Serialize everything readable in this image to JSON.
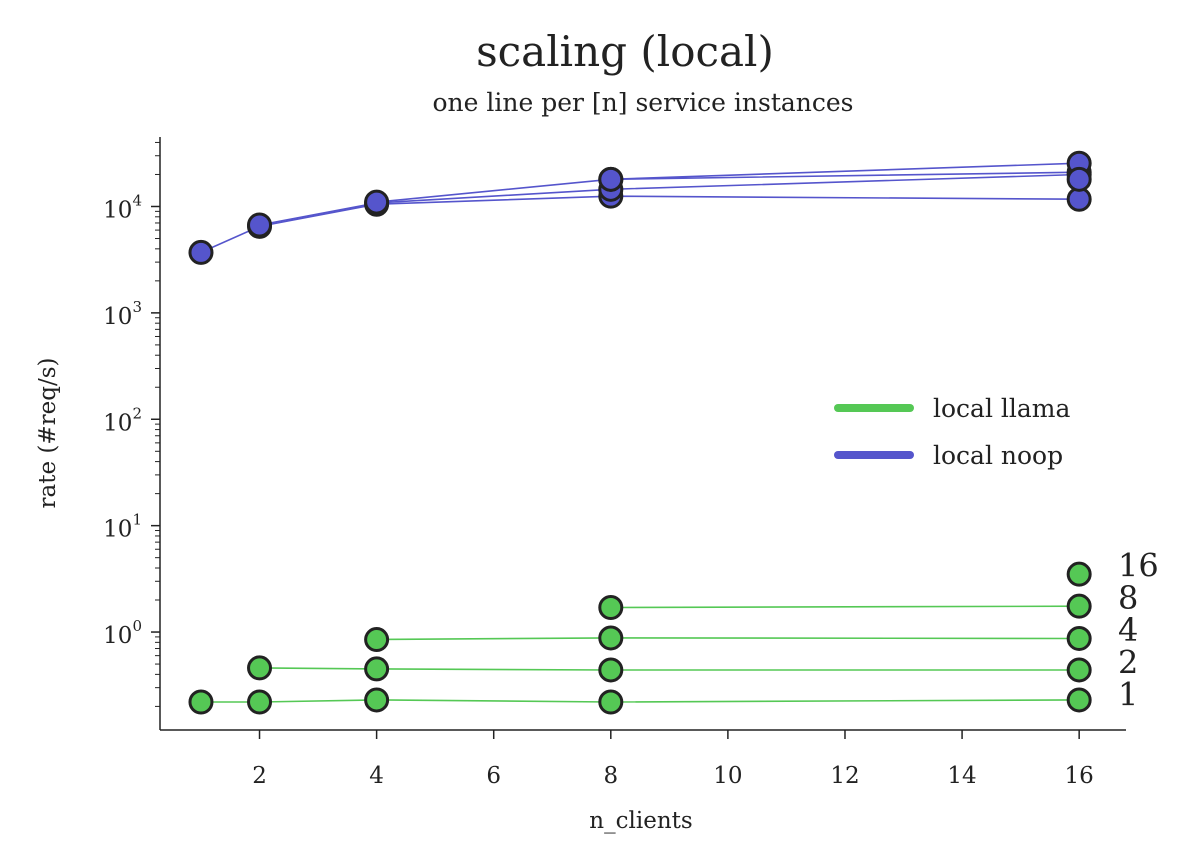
{
  "chart_data": {
    "type": "line",
    "title": "scaling (local)",
    "subtitle": "one line per [n] service instances",
    "xlabel": "n_clients",
    "ylabel": "rate (#req/s)",
    "xscale": "linear",
    "yscale": "log",
    "xlim": [
      0.3,
      16.8
    ],
    "ylim": [
      0.12,
      45000
    ],
    "xticks": [
      2,
      4,
      6,
      8,
      10,
      12,
      14,
      16
    ],
    "yticks": [
      {
        "value": 1,
        "base": "10",
        "exp": "0"
      },
      {
        "value": 10,
        "base": "10",
        "exp": "1"
      },
      {
        "value": 100,
        "base": "10",
        "exp": "2"
      },
      {
        "value": 1000,
        "base": "10",
        "exp": "3"
      },
      {
        "value": 10000,
        "base": "10",
        "exp": "4"
      }
    ],
    "grid": false,
    "legend": {
      "position": "center-right",
      "entries": [
        {
          "label": "local llama",
          "color": "#55c855"
        },
        {
          "label": "local noop",
          "color": "#5555cc"
        }
      ]
    },
    "series": [
      {
        "group": "local llama",
        "instances": "1",
        "color": "#55c855",
        "x": [
          1,
          2,
          4,
          8,
          16
        ],
        "y": [
          0.22,
          0.22,
          0.23,
          0.22,
          0.23
        ]
      },
      {
        "group": "local llama",
        "instances": "2",
        "color": "#55c855",
        "x": [
          2,
          4,
          8,
          16
        ],
        "y": [
          0.46,
          0.45,
          0.44,
          0.44
        ]
      },
      {
        "group": "local llama",
        "instances": "4",
        "color": "#55c855",
        "x": [
          4,
          8,
          16
        ],
        "y": [
          0.85,
          0.88,
          0.87
        ]
      },
      {
        "group": "local llama",
        "instances": "8",
        "color": "#55c855",
        "x": [
          8,
          16
        ],
        "y": [
          1.7,
          1.75
        ]
      },
      {
        "group": "local llama",
        "instances": "16",
        "color": "#55c855",
        "x": [
          16
        ],
        "y": [
          3.5
        ]
      },
      {
        "group": "local noop",
        "instances": "1",
        "color": "#5555cc",
        "x": [
          1,
          2,
          4,
          8,
          16
        ],
        "y": [
          3700,
          6500,
          10500,
          12500,
          11700
        ]
      },
      {
        "group": "local noop",
        "instances": "2",
        "color": "#5555cc",
        "x": [
          2,
          4,
          8,
          16
        ],
        "y": [
          6700,
          10800,
          14500,
          20000
        ]
      },
      {
        "group": "local noop",
        "instances": "4",
        "color": "#5555cc",
        "x": [
          4,
          8,
          16
        ],
        "y": [
          11000,
          18000,
          21000
        ]
      },
      {
        "group": "local noop",
        "instances": "8",
        "color": "#5555cc",
        "x": [
          8,
          16
        ],
        "y": [
          18000,
          25500
        ]
      },
      {
        "group": "local noop",
        "instances": "16",
        "color": "#5555cc",
        "x": [
          16
        ],
        "y": [
          18000
        ]
      }
    ],
    "end_labels": [
      {
        "text": "16",
        "y": 4.2
      },
      {
        "text": "8",
        "y": 2.1
      },
      {
        "text": "4",
        "y": 1.05
      },
      {
        "text": "2",
        "y": 0.52
      },
      {
        "text": "1",
        "y": 0.26
      }
    ]
  }
}
